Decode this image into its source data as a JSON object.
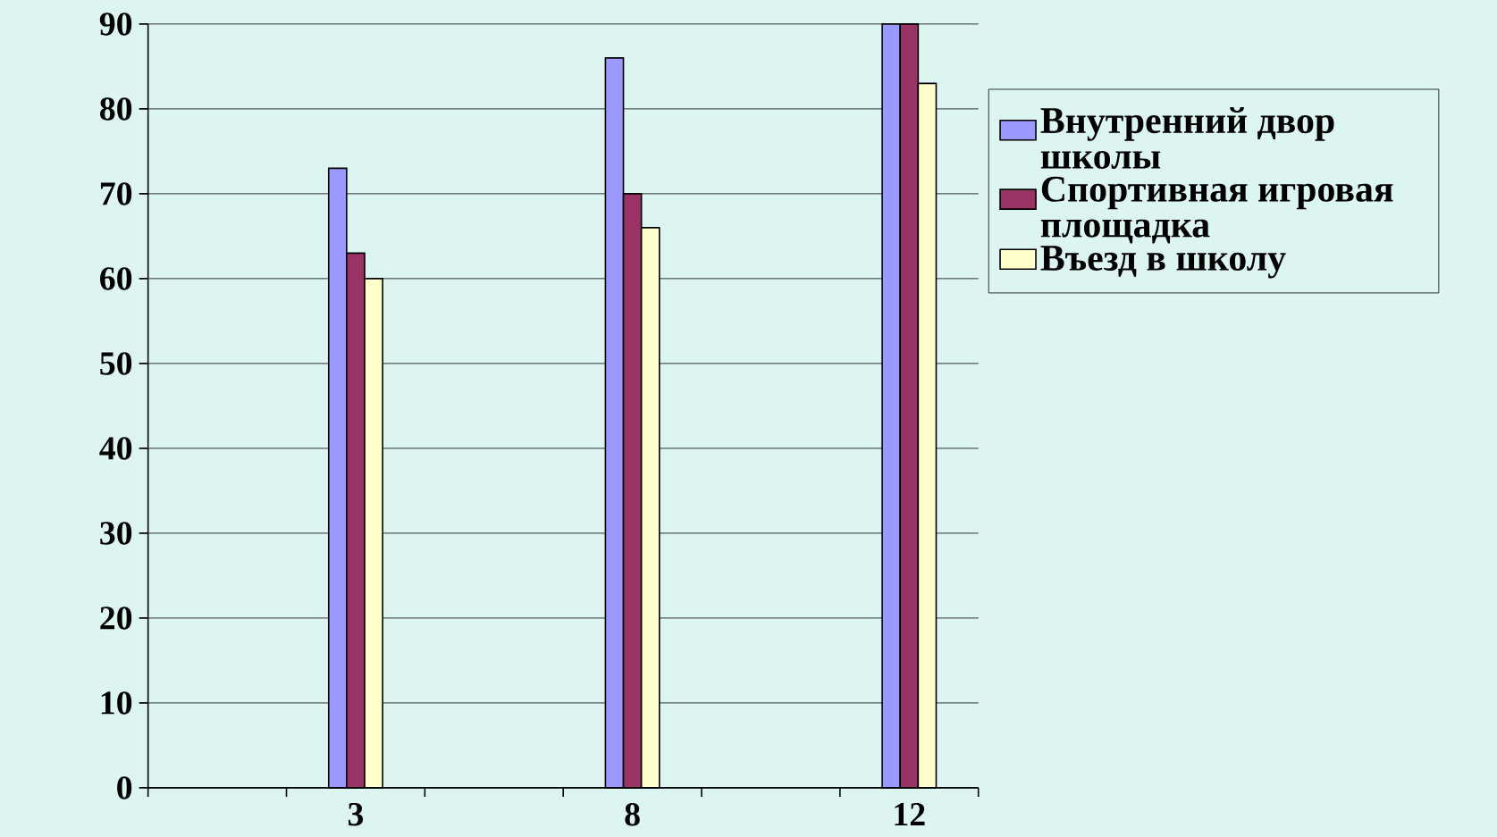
{
  "chart_data": {
    "type": "bar",
    "categories": [
      null,
      "3",
      null,
      "8",
      null,
      "12"
    ],
    "series": [
      {
        "name": "Внутренний двор школы",
        "color": "#9999ff",
        "values": [
          null,
          73,
          null,
          86,
          null,
          90
        ]
      },
      {
        "name": "Спортивная игровая площадка",
        "color": "#993366",
        "values": [
          null,
          63,
          null,
          70,
          null,
          90
        ]
      },
      {
        "name": "Въезд в школу",
        "color": "#ffffcc",
        "values": [
          null,
          60,
          null,
          66,
          null,
          83
        ]
      }
    ],
    "ylim": [
      0,
      90
    ],
    "yticks": [
      0,
      10,
      20,
      30,
      40,
      50,
      60,
      70,
      80,
      90
    ],
    "grid": "y",
    "legend": "right"
  }
}
